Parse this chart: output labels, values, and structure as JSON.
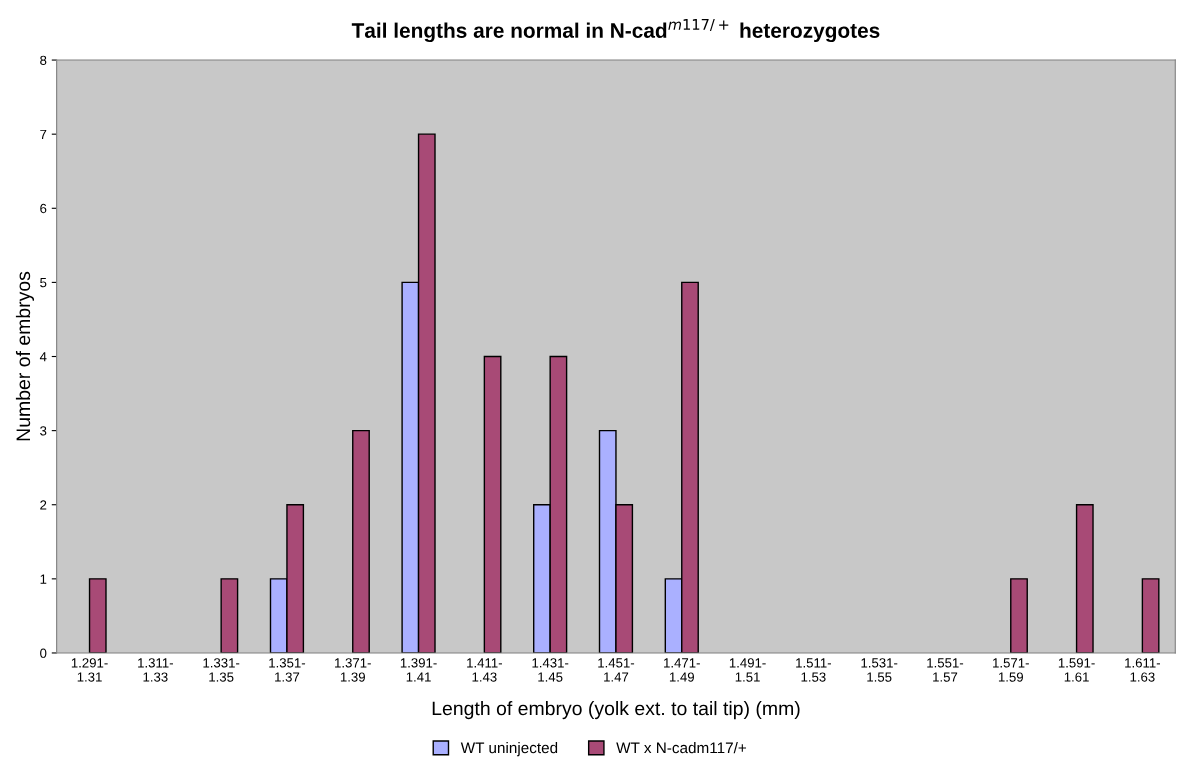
{
  "chart_data": {
    "type": "bar",
    "title": "Tail lengths are normal in N-cad$^{m117/+}$ heterozygotes",
    "xlabel": "Length of embryo (yolk ext. to tail tip) (mm)",
    "ylabel": "Number of embryos",
    "categories": [
      "1.291-\n1.31",
      "1.311-\n1.33",
      "1.331-\n1.35",
      "1.351-\n1.37",
      "1.371-\n1.39",
      "1.391-\n1.41",
      "1.411-\n1.43",
      "1.431-\n1.45",
      "1.451-\n1.47",
      "1.471-\n1.49",
      "1.491-\n1.51",
      "1.511-\n1.53",
      "1.531-\n1.55",
      "1.551-\n1.57",
      "1.571-\n1.59",
      "1.591-\n1.61",
      "1.611-\n1.63"
    ],
    "series": [
      {
        "name": "WT uninjected",
        "color": "#aab0ff",
        "values": [
          0,
          0,
          0,
          1,
          0,
          5,
          0,
          2,
          3,
          1,
          0,
          0,
          0,
          0,
          0,
          0,
          0
        ]
      },
      {
        "name": "WT x N-cadm117/+",
        "color": "#a84a76",
        "values": [
          1,
          0,
          1,
          2,
          3,
          7,
          4,
          4,
          2,
          5,
          0,
          0,
          0,
          0,
          1,
          2,
          1
        ]
      }
    ],
    "ylim": [
      0,
      8
    ],
    "yticks": [
      0,
      1,
      2,
      3,
      4,
      5,
      6,
      7,
      8
    ],
    "grid": false,
    "legend": "bottom"
  }
}
